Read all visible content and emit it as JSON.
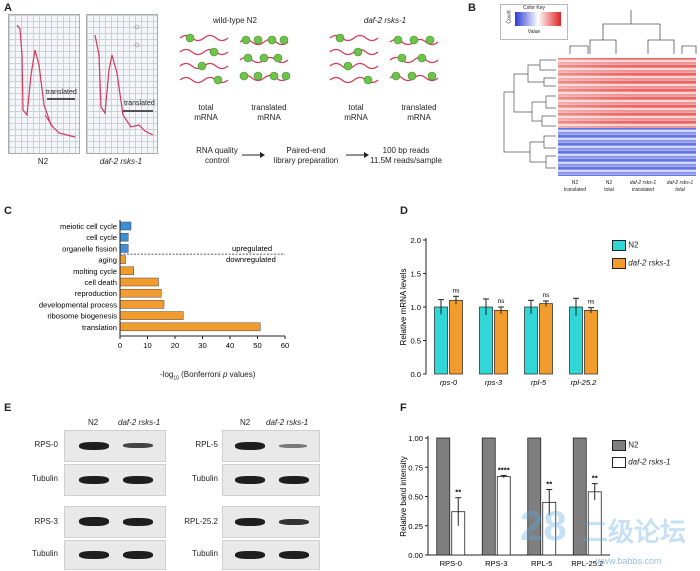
{
  "panelA": {
    "label": "A",
    "gels": [
      {
        "name": "N2",
        "tag": "translated"
      },
      {
        "name": "daf-2 rsks-1",
        "tag": "translated"
      }
    ],
    "groups": [
      {
        "title": "wild-type N2",
        "italic": false
      },
      {
        "title": "daf-2 rsks-1",
        "italic": true
      }
    ],
    "rna": [
      "total\nmRNA",
      "translated\nmRNA",
      "total\nmRNA",
      "translated\nmRNA"
    ],
    "steps": [
      "RNA quality\ncontrol",
      "Paired-end\nlibrary preparation",
      "100 bp reads\n11.5M reads/sample"
    ]
  },
  "panelB": {
    "label": "B",
    "key_title": "Color Key",
    "key_axis": "Value",
    "key_ylabel": "Count",
    "columns": [
      "N2\ntranslated",
      "N2\ntotal",
      "daf-2 rsks-1\ntranslated",
      "daf-2 rsks-1\ntotal"
    ]
  },
  "panelC": {
    "label": "C",
    "up_label": "upregulated",
    "down_label": "downregulated",
    "xlabel_pre": "-log",
    "xlabel_sub": "10",
    "xlabel_mid": " (Bonferroni ",
    "xlabel_p": "p",
    "xlabel_post": " values)"
  },
  "panelD": {
    "label": "D",
    "legend": [
      "N2",
      "daf-2 rsks-1"
    ]
  },
  "panelE": {
    "label": "E",
    "left": {
      "headers": [
        "N2",
        "daf-2 rsks-1"
      ],
      "rows": [
        "RPS-0",
        "Tubulin",
        "RPS-3",
        "Tubulin"
      ]
    },
    "right": {
      "headers": [
        "N2",
        "daf-2 rsks-1"
      ],
      "rows": [
        "RPL-5",
        "Tubulin",
        "RPL-25.2",
        "Tubulin"
      ]
    }
  },
  "panelF": {
    "label": "F",
    "legend": [
      "N2",
      "daf-2 rsks-1"
    ]
  },
  "watermark": {
    "number": "28",
    "cn": "二级论坛",
    "url": "www.babbs.com"
  },
  "chart_data": [
    {
      "id": "C",
      "type": "bar",
      "orientation": "horizontal",
      "categories": [
        "meiotic cell cycle",
        "cell cycle",
        "organelle fission",
        "aging",
        "molting cycle",
        "cell death",
        "reproduction",
        "developmental process",
        "ribosome biogenesis",
        "translation"
      ],
      "values": [
        4,
        3,
        3,
        2,
        5,
        14,
        15,
        16,
        23,
        51
      ],
      "groups": [
        "up",
        "up",
        "up",
        "down",
        "down",
        "down",
        "down",
        "down",
        "down",
        "down"
      ],
      "colors": {
        "up": "#3a8fd6",
        "down": "#f39c2e"
      },
      "xlim": [
        0,
        60
      ],
      "xticks": [
        0,
        10,
        20,
        30,
        40,
        50,
        60
      ]
    },
    {
      "id": "D",
      "type": "bar",
      "categories": [
        "rps-0",
        "rps-3",
        "rpl-5",
        "rpl-25.2"
      ],
      "series": [
        {
          "name": "N2",
          "color": "#31d6d6",
          "values": [
            1.0,
            1.0,
            1.0,
            1.0
          ],
          "errors": [
            0.11,
            0.12,
            0.1,
            0.13
          ]
        },
        {
          "name": "daf-2 rsks-1",
          "color": "#f39c2e",
          "values": [
            1.1,
            0.95,
            1.05,
            0.95
          ],
          "errors": [
            0.06,
            0.05,
            0.04,
            0.04
          ]
        }
      ],
      "annotations": [
        "ns",
        "ns",
        "ns",
        "ns"
      ],
      "ylabel": "Relative mRNA levels",
      "ylim": [
        0,
        2.0
      ],
      "yticks": [
        "0.0",
        "0.5",
        "1.0",
        "1.5",
        "2.0"
      ]
    },
    {
      "id": "F",
      "type": "bar",
      "categories": [
        "RPS-0",
        "RPS-3",
        "RPL-5",
        "RPL-25.2"
      ],
      "series": [
        {
          "name": "N2",
          "color": "#7f7f7f",
          "values": [
            1.0,
            1.0,
            1.0,
            1.0
          ],
          "errors": [
            0,
            0,
            0,
            0
          ]
        },
        {
          "name": "daf-2 rsks-1",
          "color": "#ffffff",
          "values": [
            0.37,
            0.67,
            0.45,
            0.54
          ],
          "errors": [
            0.12,
            0.01,
            0.11,
            0.07
          ]
        }
      ],
      "annotations": [
        "**",
        "****",
        "**",
        "**"
      ],
      "ylabel": "Relative band intensity",
      "ylim": [
        0,
        1.0
      ],
      "yticks": [
        "0.00",
        "0.25",
        "0.50",
        "0.75",
        "1.00"
      ]
    }
  ]
}
